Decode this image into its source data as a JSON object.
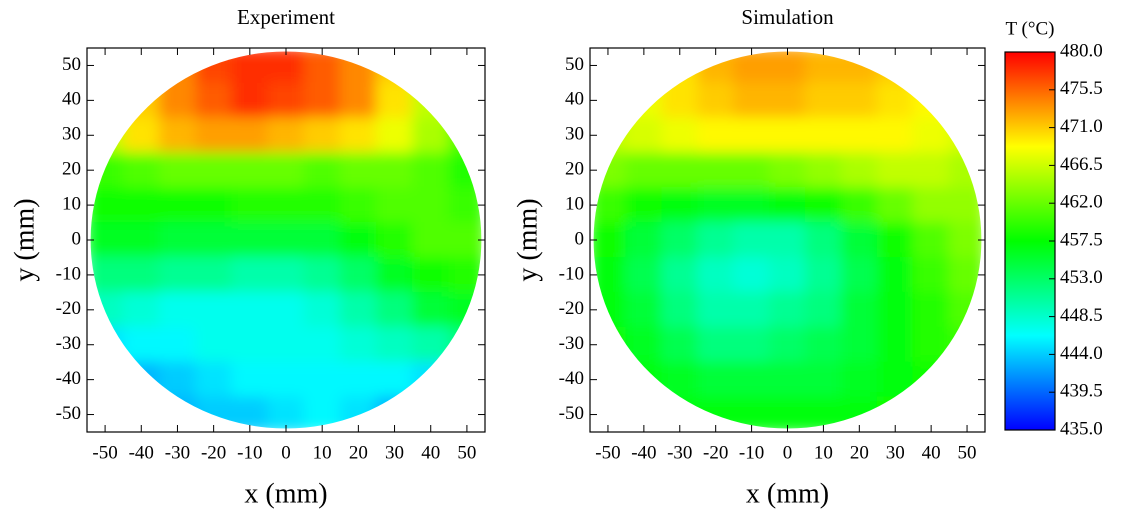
{
  "chart_data": [
    {
      "type": "heatmap",
      "title": "Experiment",
      "x_label": "x (mm)",
      "y_label": "y (mm)",
      "xlim": [
        -55,
        55
      ],
      "ylim": [
        -55,
        55
      ],
      "xticks": [
        -50,
        -40,
        -30,
        -20,
        -10,
        0,
        10,
        20,
        30,
        40,
        50
      ],
      "yticks": [
        -50,
        -40,
        -30,
        -20,
        -10,
        0,
        10,
        20,
        30,
        40,
        50
      ],
      "x": [
        -50,
        -40,
        -30,
        -20,
        -10,
        0,
        10,
        20,
        30,
        40,
        50
      ],
      "y": [
        50,
        40,
        30,
        20,
        10,
        0,
        -10,
        -20,
        -30,
        -40,
        -50
      ],
      "z": [
        [
          null,
          null,
          474,
          477,
          478,
          478,
          476,
          474,
          471,
          null,
          null
        ],
        [
          null,
          471,
          474,
          476,
          478,
          477,
          476,
          474,
          470,
          466,
          null
        ],
        [
          466,
          470,
          472,
          473,
          473,
          472,
          471,
          470,
          468,
          465,
          461
        ],
        [
          460,
          461,
          462,
          462,
          462,
          462,
          461,
          462,
          462,
          461,
          459
        ],
        [
          458,
          458,
          458,
          458,
          459,
          459,
          459,
          460,
          461,
          461,
          460
        ],
        [
          456,
          456,
          455,
          455,
          455,
          455,
          455,
          457,
          459,
          461,
          461
        ],
        [
          452,
          452,
          451,
          451,
          450,
          450,
          451,
          453,
          456,
          458,
          459
        ],
        [
          449,
          448,
          447,
          447,
          447,
          447,
          448,
          450,
          452,
          455,
          456
        ],
        [
          445,
          446,
          446,
          447,
          447,
          447,
          447,
          448,
          449,
          450,
          452
        ],
        [
          null,
          443,
          444,
          445,
          446,
          446,
          446,
          446,
          446,
          445,
          null
        ],
        [
          null,
          null,
          443,
          444,
          444,
          445,
          446,
          445,
          443,
          null,
          null
        ]
      ]
    },
    {
      "type": "heatmap",
      "title": "Simulation",
      "x_label": "x (mm)",
      "y_label": "y (mm)",
      "xlim": [
        -55,
        55
      ],
      "ylim": [
        -55,
        55
      ],
      "xticks": [
        -50,
        -40,
        -30,
        -20,
        -10,
        0,
        10,
        20,
        30,
        40,
        50
      ],
      "yticks": [
        -50,
        -40,
        -30,
        -20,
        -10,
        0,
        10,
        20,
        30,
        40,
        50
      ],
      "x": [
        -50,
        -40,
        -30,
        -20,
        -10,
        0,
        10,
        20,
        30,
        40,
        50
      ],
      "y": [
        50,
        40,
        30,
        20,
        10,
        0,
        -10,
        -20,
        -30,
        -40,
        -50
      ],
      "z": [
        [
          null,
          null,
          470,
          472,
          473,
          473,
          472,
          472,
          471,
          null,
          null
        ],
        [
          null,
          468,
          470,
          471,
          472,
          472,
          471,
          471,
          470,
          469,
          null
        ],
        [
          466,
          467,
          468,
          469,
          469,
          469,
          469,
          469,
          469,
          468,
          467
        ],
        [
          463,
          462,
          462,
          462,
          462,
          463,
          464,
          465,
          466,
          466,
          465
        ],
        [
          460,
          458,
          457,
          456,
          456,
          457,
          458,
          460,
          462,
          464,
          464
        ],
        [
          458,
          455,
          453,
          451,
          450,
          450,
          452,
          455,
          458,
          461,
          463
        ],
        [
          457,
          454,
          451,
          449,
          448,
          449,
          451,
          454,
          457,
          460,
          462
        ],
        [
          457,
          455,
          452,
          450,
          450,
          451,
          452,
          455,
          457,
          459,
          461
        ],
        [
          458,
          456,
          454,
          452,
          452,
          453,
          454,
          455,
          457,
          459,
          460
        ],
        [
          null,
          457,
          456,
          455,
          455,
          455,
          455,
          456,
          457,
          458,
          null
        ],
        [
          null,
          null,
          457,
          457,
          457,
          457,
          457,
          457,
          458,
          null,
          null
        ]
      ]
    }
  ],
  "colorbar": {
    "label": "T (°C)",
    "zlim": [
      435,
      480
    ],
    "ticks": [
      {
        "value": 435,
        "label": "435.0"
      },
      439.5,
      {
        "value": 444,
        "label": "444.0"
      },
      448.5,
      {
        "value": 453,
        "label": "453.0"
      },
      457.5,
      {
        "value": 462,
        "label": "462.0"
      },
      466.5,
      {
        "value": 471,
        "label": "471.0"
      },
      475.5,
      {
        "value": 480,
        "label": "480.0"
      }
    ],
    "colormap": [
      "#0000ff",
      "#00ffff",
      "#00ff00",
      "#ffff00",
      "#ff0000"
    ]
  }
}
